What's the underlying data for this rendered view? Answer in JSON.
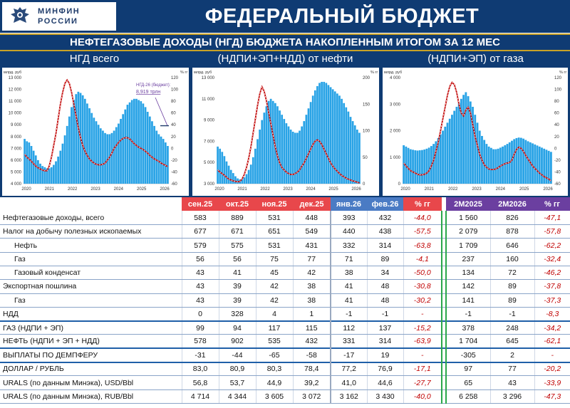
{
  "header": {
    "logo_text_1": "МИНФИН",
    "logo_text_2": "РОССИИ",
    "title": "ФЕДЕРАЛЬНЫЙ БЮДЖЕТ",
    "subtitle": "НЕФТЕГАЗОВЫЕ ДОХОДЫ (НГД) БЮДЖЕТА НАКОПЛЕННЫМ ИТОГОМ ЗА 12 МЕС"
  },
  "charts_titles": [
    "НГД всего",
    "(НДПИ+ЭП+НДД) от нефти",
    "(НДПИ+ЭП) от газа"
  ],
  "colors": {
    "navy": "#0f3b73",
    "bar": "#29a3e6",
    "line_red": "#c00000",
    "line_white": "#ffffff",
    "accent_gold": "#c9a227",
    "purple": "#6b3fa0"
  },
  "chart_data": [
    {
      "type": "bar",
      "title": "НГД всего",
      "ylabel_left": "млрд. руб",
      "ylabel_right": "% гг",
      "y_left_ticks": [
        "13 000",
        "12 000",
        "11 000",
        "10 000",
        "9 000",
        "8 000",
        "7 000",
        "6 000",
        "5 000",
        "4 000"
      ],
      "y_right_ticks": [
        "120",
        "100",
        "80",
        "60",
        "40",
        "20",
        "0",
        "-20",
        "-40",
        "-60"
      ],
      "x_ticks": [
        "2020",
        "2021",
        "2022",
        "2023",
        "2024",
        "2025",
        "2026"
      ],
      "ylim_left": [
        4000,
        13000
      ],
      "ylim_right": [
        -60,
        120
      ],
      "annotation_label": "НГД-26 (бюджет):",
      "annotation_value": "8,919 трлн",
      "annotation_budget": 8919,
      "series": [
        {
          "name": "НГД",
          "kind": "bar",
          "values": [
            7800,
            7600,
            7500,
            7200,
            6800,
            6400,
            6000,
            5700,
            5500,
            5400,
            5300,
            5300,
            5400,
            5600,
            5900,
            6300,
            6800,
            7400,
            8100,
            8900,
            9700,
            10500,
            11100,
            11600,
            11800,
            11700,
            11500,
            11200,
            10800,
            10400,
            10000,
            9600,
            9300,
            9000,
            8700,
            8500,
            8300,
            8200,
            8200,
            8300,
            8500,
            8800,
            9100,
            9500,
            9900,
            10300,
            10700,
            10900,
            11100,
            11200,
            11200,
            11100,
            11000,
            10800,
            10500,
            10100,
            9700,
            9300,
            8900,
            8500,
            8200,
            8000,
            7800,
            7500,
            7200
          ]
        },
        {
          "name": "% гг",
          "kind": "line",
          "values": [
            -10,
            -15,
            -18,
            -22,
            -26,
            -30,
            -33,
            -35,
            -37,
            -38,
            -38,
            -30,
            -15,
            5,
            25,
            50,
            75,
            95,
            110,
            116,
            110,
            95,
            75,
            55,
            35,
            18,
            5,
            -5,
            -12,
            -18,
            -22,
            -25,
            -27,
            -28,
            -28,
            -27,
            -25,
            -20,
            -15,
            -8,
            0,
            5,
            10,
            14,
            17,
            18,
            18,
            16,
            12,
            8,
            5,
            2,
            0,
            -2,
            -5,
            -8,
            -12,
            -15,
            -18,
            -20,
            -22,
            -25,
            -27,
            -29,
            -31
          ]
        }
      ]
    },
    {
      "type": "bar",
      "title": "(НДПИ+ЭП+НДД) от нефти",
      "ylabel_left": "млрд. руб",
      "ylabel_right": "% гг",
      "y_left_ticks": [
        "13 000",
        "11 000",
        "9 000",
        "7 000",
        "5 000",
        "3 000"
      ],
      "y_right_ticks": [
        "200",
        "150",
        "100",
        "50",
        "0"
      ],
      "x_ticks": [
        "2020",
        "2021",
        "2022",
        "2023",
        "2024",
        "2025",
        "2026"
      ],
      "ylim_left": [
        3000,
        13000
      ],
      "ylim_right": [
        -30,
        200
      ],
      "series": [
        {
          "name": "Нефть",
          "kind": "bar",
          "values": [
            6500,
            6300,
            6000,
            5600,
            5100,
            4700,
            4300,
            4000,
            3700,
            3500,
            3400,
            3400,
            3600,
            3900,
            4300,
            4800,
            5500,
            6300,
            7200,
            8100,
            9000,
            9700,
            10300,
            10800,
            11000,
            10800,
            10600,
            10300,
            9900,
            9500,
            9100,
            8700,
            8400,
            8100,
            7900,
            7800,
            7800,
            8000,
            8400,
            8900,
            9500,
            10100,
            10700,
            11300,
            11800,
            12200,
            12500,
            12600,
            12600,
            12500,
            12300,
            12100,
            11900,
            11700,
            11500,
            11300,
            11000,
            10600,
            10200,
            9800,
            9300,
            8900,
            8500,
            8100,
            7800
          ]
        },
        {
          "name": "% гг",
          "kind": "line",
          "values": [
            0,
            -5,
            -8,
            -12,
            -16,
            -20,
            -22,
            -24,
            -25,
            -26,
            -25,
            -20,
            -10,
            5,
            25,
            50,
            80,
            110,
            140,
            165,
            180,
            170,
            150,
            125,
            100,
            75,
            50,
            30,
            15,
            5,
            0,
            -5,
            -8,
            -10,
            -10,
            -8,
            -5,
            0,
            8,
            15,
            25,
            35,
            45,
            55,
            62,
            65,
            62,
            55,
            45,
            35,
            25,
            15,
            8,
            2,
            -3,
            -8,
            -12,
            -15,
            -18,
            -20,
            -22,
            -24,
            -25,
            -27,
            -28
          ]
        }
      ]
    },
    {
      "type": "bar",
      "title": "(НДПИ+ЭП) от газа",
      "ylabel_left": "млрд. руб",
      "ylabel_right": "% гг",
      "y_left_ticks": [
        "4 000",
        "3 000",
        "2 000",
        "1 000",
        "0"
      ],
      "y_right_ticks": [
        "120",
        "100",
        "80",
        "60",
        "40",
        "20",
        "0",
        "-20",
        "-40",
        "-60"
      ],
      "x_ticks": [
        "2020",
        "2021",
        "2022",
        "2023",
        "2024",
        "2025",
        "2026"
      ],
      "ylim_left": [
        0,
        4000
      ],
      "ylim_right": [
        -60,
        120
      ],
      "series": [
        {
          "name": "Газ",
          "kind": "bar",
          "values": [
            1450,
            1400,
            1350,
            1300,
            1280,
            1260,
            1250,
            1260,
            1270,
            1290,
            1320,
            1360,
            1420,
            1500,
            1600,
            1720,
            1860,
            2000,
            2150,
            2300,
            2450,
            2600,
            2750,
            2900,
            3050,
            3200,
            3350,
            3450,
            3300,
            3100,
            2900,
            2600,
            2300,
            2000,
            1800,
            1650,
            1500,
            1400,
            1350,
            1300,
            1300,
            1320,
            1360,
            1400,
            1450,
            1500,
            1560,
            1620,
            1680,
            1720,
            1740,
            1730,
            1700,
            1650,
            1600,
            1560,
            1520,
            1480,
            1440,
            1400,
            1360,
            1320,
            1280,
            1240,
            1200
          ]
        },
        {
          "name": "% гг",
          "kind": "line",
          "values": [
            -25,
            -30,
            -34,
            -38,
            -40,
            -42,
            -44,
            -45,
            -45,
            -44,
            -42,
            -38,
            -30,
            -20,
            -5,
            10,
            30,
            50,
            70,
            90,
            105,
            112,
            108,
            95,
            75,
            60,
            55,
            65,
            70,
            60,
            40,
            20,
            5,
            -10,
            -20,
            -28,
            -32,
            -35,
            -36,
            -36,
            -35,
            -33,
            -30,
            -28,
            -26,
            -25,
            -24,
            -20,
            -10,
            -2,
            2,
            0,
            -5,
            -12,
            -18,
            -24,
            -30,
            -34,
            -38,
            -42,
            -45,
            -48,
            -50,
            -52,
            -55
          ]
        }
      ]
    }
  ],
  "table": {
    "headers": {
      "months": [
        "сен.25",
        "окт.25",
        "ноя.25",
        "дек.25"
      ],
      "months_new": [
        "янв.26",
        "фев.26"
      ],
      "pct": "% гг",
      "ytd": [
        "2М2025",
        "2М2026"
      ],
      "ytd_pct": "% гг"
    },
    "rows": [
      {
        "label": "Нефтегазовые доходы, всего",
        "vals": [
          "583",
          "889",
          "531",
          "448",
          "393",
          "432"
        ],
        "pct": "-44,0",
        "ytd": [
          "1 560",
          "826"
        ],
        "ytd_pct": "-47,1",
        "indent": false,
        "group_top": false
      },
      {
        "label": "Налог на добычу полезных ископаемых",
        "vals": [
          "677",
          "671",
          "651",
          "549",
          "440",
          "438"
        ],
        "pct": "-57,5",
        "ytd": [
          "2 079",
          "878"
        ],
        "ytd_pct": "-57,8",
        "indent": false,
        "group_top": false
      },
      {
        "label": "Нефть",
        "vals": [
          "579",
          "575",
          "531",
          "431",
          "332",
          "314"
        ],
        "pct": "-63,8",
        "ytd": [
          "1 709",
          "646"
        ],
        "ytd_pct": "-62,2",
        "indent": true,
        "group_top": false
      },
      {
        "label": "Газ",
        "vals": [
          "56",
          "56",
          "75",
          "77",
          "71",
          "89"
        ],
        "pct": "-4,1",
        "ytd": [
          "237",
          "160"
        ],
        "ytd_pct": "-32,4",
        "indent": true,
        "group_top": false
      },
      {
        "label": "Газовый конденсат",
        "vals": [
          "43",
          "41",
          "45",
          "42",
          "38",
          "34"
        ],
        "pct": "-50,0",
        "ytd": [
          "134",
          "72"
        ],
        "ytd_pct": "-46,2",
        "indent": true,
        "group_top": false
      },
      {
        "label": "Экспортная пошлина",
        "vals": [
          "43",
          "39",
          "42",
          "38",
          "41",
          "48"
        ],
        "pct": "-30,8",
        "ytd": [
          "142",
          "89"
        ],
        "ytd_pct": "-37,8",
        "indent": false,
        "group_top": false
      },
      {
        "label": "Газ",
        "vals": [
          "43",
          "39",
          "42",
          "38",
          "41",
          "48"
        ],
        "pct": "-30,2",
        "ytd": [
          "141",
          "89"
        ],
        "ytd_pct": "-37,3",
        "indent": true,
        "group_top": false
      },
      {
        "label": "НДД",
        "vals": [
          "0",
          "328",
          "4",
          "1",
          "-1",
          "-1"
        ],
        "pct": "-",
        "ytd": [
          "-1",
          "-1"
        ],
        "ytd_pct": "-8,3",
        "indent": false,
        "group_top": false
      },
      {
        "label": "ГАЗ (НДПИ + ЭП)",
        "vals": [
          "99",
          "94",
          "117",
          "115",
          "112",
          "137"
        ],
        "pct": "-15,2",
        "ytd": [
          "378",
          "248"
        ],
        "ytd_pct": "-34,2",
        "indent": false,
        "group_top": true
      },
      {
        "label": "НЕФТЬ (НДПИ + ЭП + НДД)",
        "vals": [
          "578",
          "902",
          "535",
          "432",
          "331",
          "314"
        ],
        "pct": "-63,9",
        "ytd": [
          "1 704",
          "645"
        ],
        "ytd_pct": "-62,1",
        "indent": false,
        "group_top": false
      },
      {
        "label": "ВЫПЛАТЫ ПО ДЕМПФЕРУ",
        "vals": [
          "-31",
          "-44",
          "-65",
          "-58",
          "-17",
          "19"
        ],
        "pct": "-",
        "ytd": [
          "-305",
          "2"
        ],
        "ytd_pct": "-",
        "indent": false,
        "group_top": true
      },
      {
        "label": "ДОЛЛАР / РУБЛЬ",
        "vals": [
          "83,0",
          "80,9",
          "80,3",
          "78,4",
          "77,2",
          "76,9"
        ],
        "pct": "-17,1",
        "ytd": [
          "97",
          "77"
        ],
        "ytd_pct": "-20,2",
        "indent": false,
        "group_top": true
      },
      {
        "label": "URALS (по данным Минэка), USD/Bbl",
        "vals": [
          "56,8",
          "53,7",
          "44,9",
          "39,2",
          "41,0",
          "44,6"
        ],
        "pct": "-27,7",
        "ytd": [
          "65",
          "43"
        ],
        "ytd_pct": "-33,9",
        "indent": false,
        "group_top": false
      },
      {
        "label": "URALS (по данным Минэка), RUB/Bbl",
        "vals": [
          "4 714",
          "4 344",
          "3 605",
          "3 072",
          "3 162",
          "3 430"
        ],
        "pct": "-40,0",
        "ytd": [
          "6 258",
          "3 296"
        ],
        "ytd_pct": "-47,3",
        "indent": false,
        "group_top": false
      }
    ]
  }
}
